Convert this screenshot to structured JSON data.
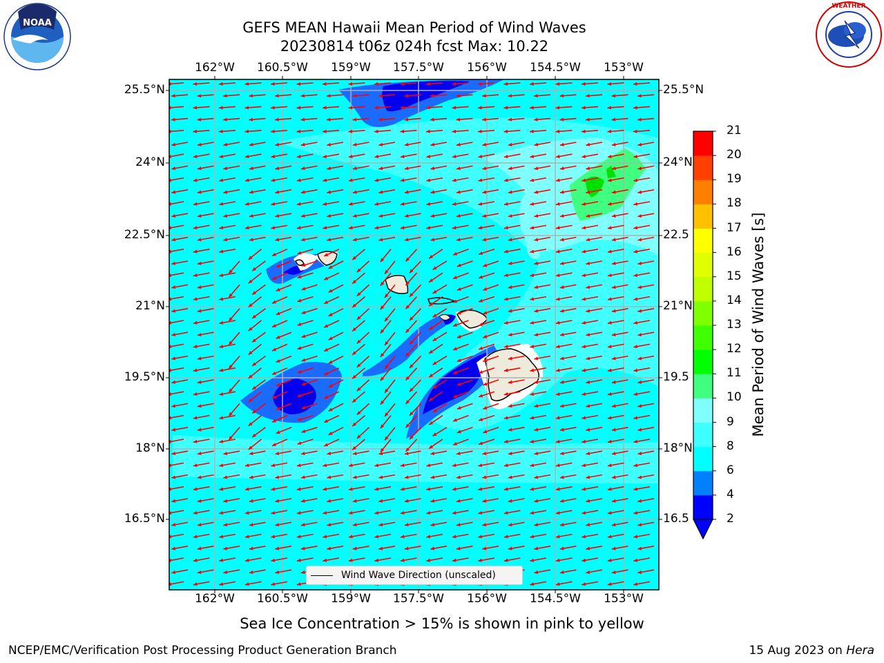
{
  "header": {
    "title_line1": "GEFS MEAN Hawaii Mean Period of Wind Waves",
    "title_line2": "20230814 t06z 024h fcst   Max: 10.22"
  },
  "logos": {
    "left": {
      "name": "noaa-logo",
      "text": "NOAA",
      "ring_text": "NATIONAL OCEANIC AND ATMOSPHERIC ADMINISTRATION · U.S. DEPARTMENT OF COMMERCE"
    },
    "right": {
      "name": "nws-logo",
      "ring_text": "NATIONAL WEATHER SERVICE"
    }
  },
  "map": {
    "lon_labels": [
      "162°W",
      "160.5°W",
      "159°W",
      "157.5°W",
      "156°W",
      "154.5°W",
      "153°W"
    ],
    "lat_labels_left": [
      "25.5°N",
      "24°N",
      "22.5°N",
      "21°N",
      "19.5°N",
      "18°N",
      "16.5°N"
    ],
    "lat_labels_right": [
      "25.5°N",
      "24°N",
      "22.5",
      "21°N",
      "19.5",
      "18°N",
      "16.5"
    ],
    "ocean_color": "#00ffff",
    "land_color": "#efebdc",
    "arrow_color": "#ff0000",
    "legend": {
      "label": "Wind Wave Direction (unscaled)"
    }
  },
  "colorbar": {
    "title": "Mean Period of Wind Waves [s]",
    "ticks": [
      "2",
      "4",
      "6",
      "8",
      "9",
      "10",
      "11",
      "12",
      "13",
      "14",
      "15",
      "16",
      "17",
      "18",
      "19",
      "20",
      "21"
    ],
    "colors": [
      "#0000ff",
      "#0080ff",
      "#00ffff",
      "#40ffff",
      "#80ffff",
      "#40ff80",
      "#00ff00",
      "#40ff00",
      "#80ff00",
      "#c0ff00",
      "#e0ff00",
      "#ffff00",
      "#ffc000",
      "#ff8000",
      "#ff4000",
      "#ff0000"
    ]
  },
  "caption": "Sea Ice Concentration > 15% is shown in pink to yellow",
  "footer": {
    "left": "NCEP/EMC/Verification Post Processing Product Generation Branch",
    "right_prefix": "15 Aug 2023 on ",
    "right_host": "Hera"
  }
}
